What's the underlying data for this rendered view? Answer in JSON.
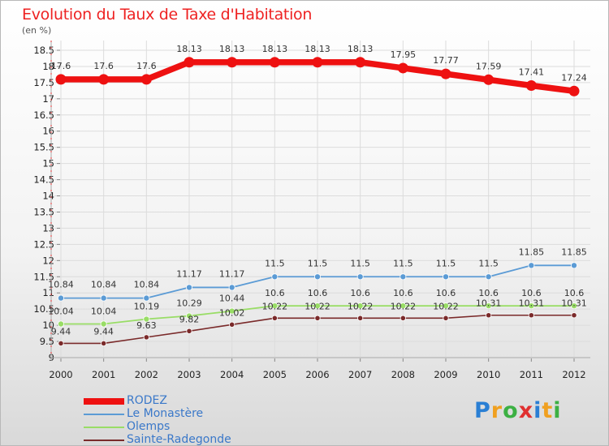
{
  "header": {
    "title": "Evolution du Taux de Taxe d'Habitation",
    "subtitle": "(en %)"
  },
  "logo": {
    "letters": [
      "P",
      "r",
      "o",
      "x",
      "i",
      "t",
      "i"
    ]
  },
  "colors": {
    "title": "#ee2222",
    "legend_text": "#3a78c9",
    "grid": "#dcdcdc",
    "logo": [
      "#2a7fd4",
      "#f0a020",
      "#3cb043",
      "#e03030",
      "#2a7fd4",
      "#f0a020",
      "#3cb043"
    ]
  },
  "chart_data": {
    "type": "line",
    "x": [
      "2000",
      "2001",
      "2002",
      "2003",
      "2004",
      "2005",
      "2006",
      "2007",
      "2008",
      "2009",
      "2010",
      "2011",
      "2012"
    ],
    "ylim": [
      9,
      18.5
    ],
    "yticks": [
      "9",
      "9.5",
      "10",
      "10.5",
      "11",
      "11.5",
      "12",
      "12.5",
      "13",
      "13.5",
      "14",
      "14.5",
      "15",
      "15.5",
      "16",
      "16.5",
      "17",
      "17.5",
      "18",
      "18.5"
    ],
    "grid": true,
    "legend_position": "bottom-left",
    "series": [
      {
        "name": "RODEZ",
        "color": "#ee1111",
        "values": [
          17.6,
          17.6,
          17.6,
          18.13,
          18.13,
          18.13,
          18.13,
          18.13,
          17.95,
          17.77,
          17.59,
          17.41,
          17.24
        ],
        "labels": [
          "17.6",
          "17.6",
          "17.6",
          "18.13",
          "18.13",
          "18.13",
          "18.13",
          "18.13",
          "17.95",
          "17.77",
          "17.59",
          "17.41",
          "17.24"
        ]
      },
      {
        "name": "Le Monastère",
        "color": "#5b9bd5",
        "values": [
          10.84,
          10.84,
          10.84,
          11.17,
          11.17,
          11.5,
          11.5,
          11.5,
          11.5,
          11.5,
          11.5,
          11.85,
          11.85
        ],
        "labels": [
          "10.84",
          "10.84",
          "10.84",
          "11.17",
          "11.17",
          "11.5",
          "11.5",
          "11.5",
          "11.5",
          "11.5",
          "11.5",
          "11.85",
          "11.85"
        ]
      },
      {
        "name": "Olemps",
        "color": "#99dd66",
        "values": [
          10.04,
          10.04,
          10.19,
          10.29,
          10.44,
          10.6,
          10.6,
          10.6,
          10.6,
          10.6,
          10.6,
          10.6,
          10.6
        ],
        "labels": [
          "10.04",
          "10.04",
          "10.19",
          "10.29",
          "10.44",
          "10.6",
          "10.6",
          "10.6",
          "10.6",
          "10.6",
          "10.6",
          "10.6",
          "10.6"
        ]
      },
      {
        "name": "Sainte-Radegonde",
        "color": "#7a2a2a",
        "values": [
          9.44,
          9.44,
          9.63,
          9.82,
          10.02,
          10.22,
          10.22,
          10.22,
          10.22,
          10.22,
          10.31,
          10.31,
          10.31
        ],
        "labels": [
          "9.44",
          "9.44",
          "9.63",
          "9.82",
          "10.02",
          "10.22",
          "10.22",
          "10.22",
          "10.22",
          "10.22",
          "10.31",
          "10.31",
          "10.31"
        ]
      }
    ]
  }
}
